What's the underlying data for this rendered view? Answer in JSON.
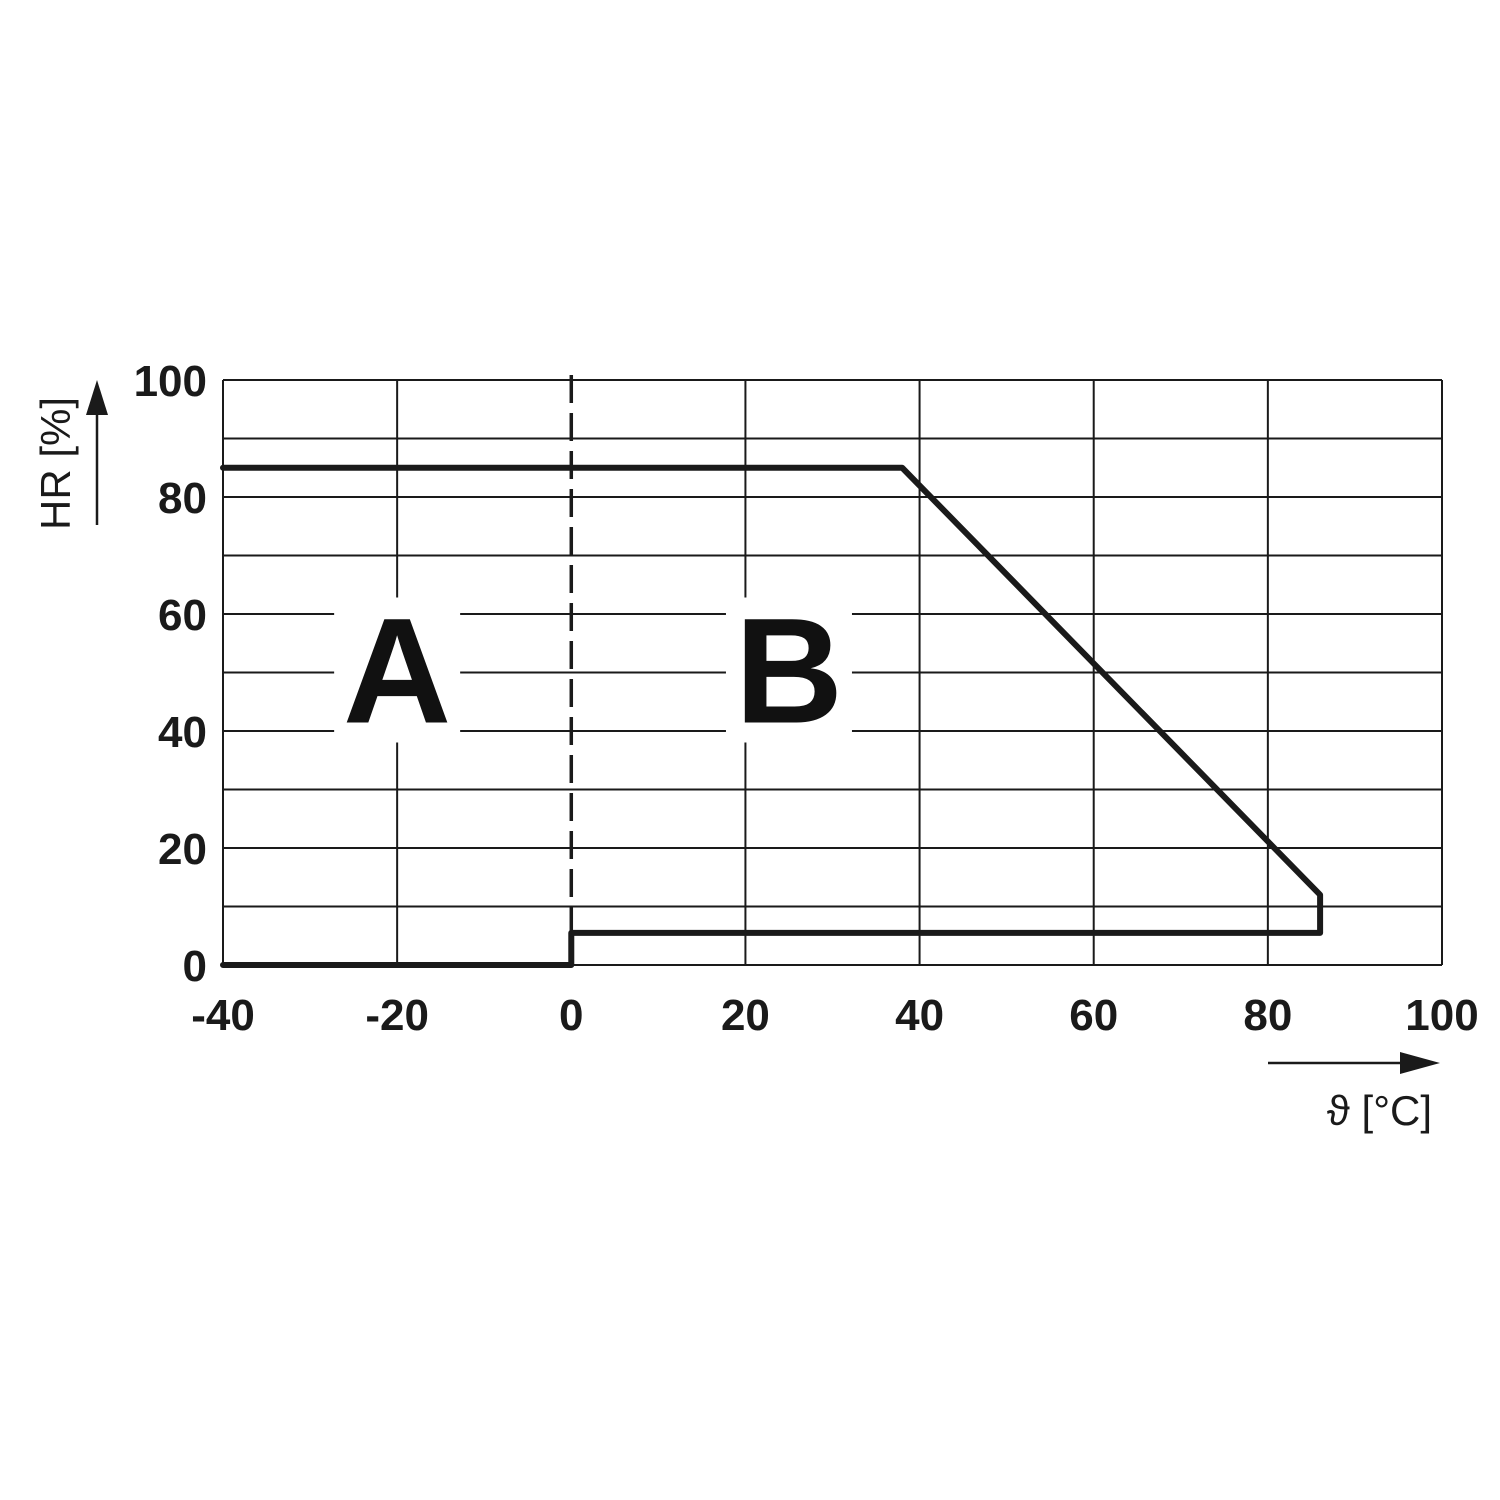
{
  "chart_data": {
    "type": "line",
    "xlabel": "ϑ [°C]",
    "ylabel": "HR [%]",
    "xlim": [
      -40,
      100
    ],
    "ylim": [
      0,
      100
    ],
    "x_ticks": [
      "-40",
      "-20",
      "0",
      "20",
      "40",
      "60",
      "80",
      "100"
    ],
    "y_ticks": [
      "0",
      "20",
      "40",
      "60",
      "80",
      "100"
    ],
    "grid": true,
    "grid_x_step": 20,
    "grid_y_step": 10,
    "divider_x": 0,
    "region_labels": [
      {
        "text": "A",
        "x": -20,
        "y": 50
      },
      {
        "text": "B",
        "x": 25,
        "y": 50
      }
    ],
    "series": [
      {
        "x": [
          -40,
          38,
          86,
          86,
          0,
          0,
          -40
        ],
        "y": [
          85,
          85,
          12,
          5.5,
          5.5,
          0,
          0
        ]
      }
    ]
  }
}
